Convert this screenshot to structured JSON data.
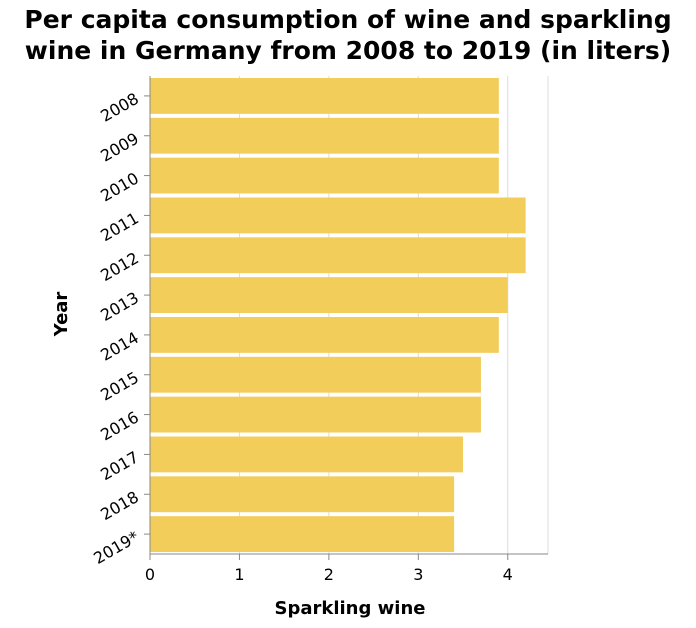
{
  "chart_data": {
    "type": "bar",
    "orientation": "horizontal",
    "title_lines": [
      "Per capita consumption of wine and sparkling",
      "wine in Germany from 2008 to 2019 (in liters)"
    ],
    "categories": [
      "2008",
      "2009",
      "2010",
      "2011",
      "2012",
      "2013",
      "2014",
      "2015",
      "2016",
      "2017",
      "2018",
      "2019*"
    ],
    "values": [
      3.9,
      3.9,
      3.9,
      4.2,
      4.2,
      4.0,
      3.9,
      3.7,
      3.7,
      3.5,
      3.4,
      3.4
    ],
    "xlabel": "Sparkling wine",
    "ylabel": "Year",
    "xlim": [
      0,
      4.45
    ],
    "xticks": [
      "0",
      "1",
      "2",
      "3",
      "4"
    ],
    "grid": "vertical",
    "bar_color": "#f2cd5a"
  }
}
